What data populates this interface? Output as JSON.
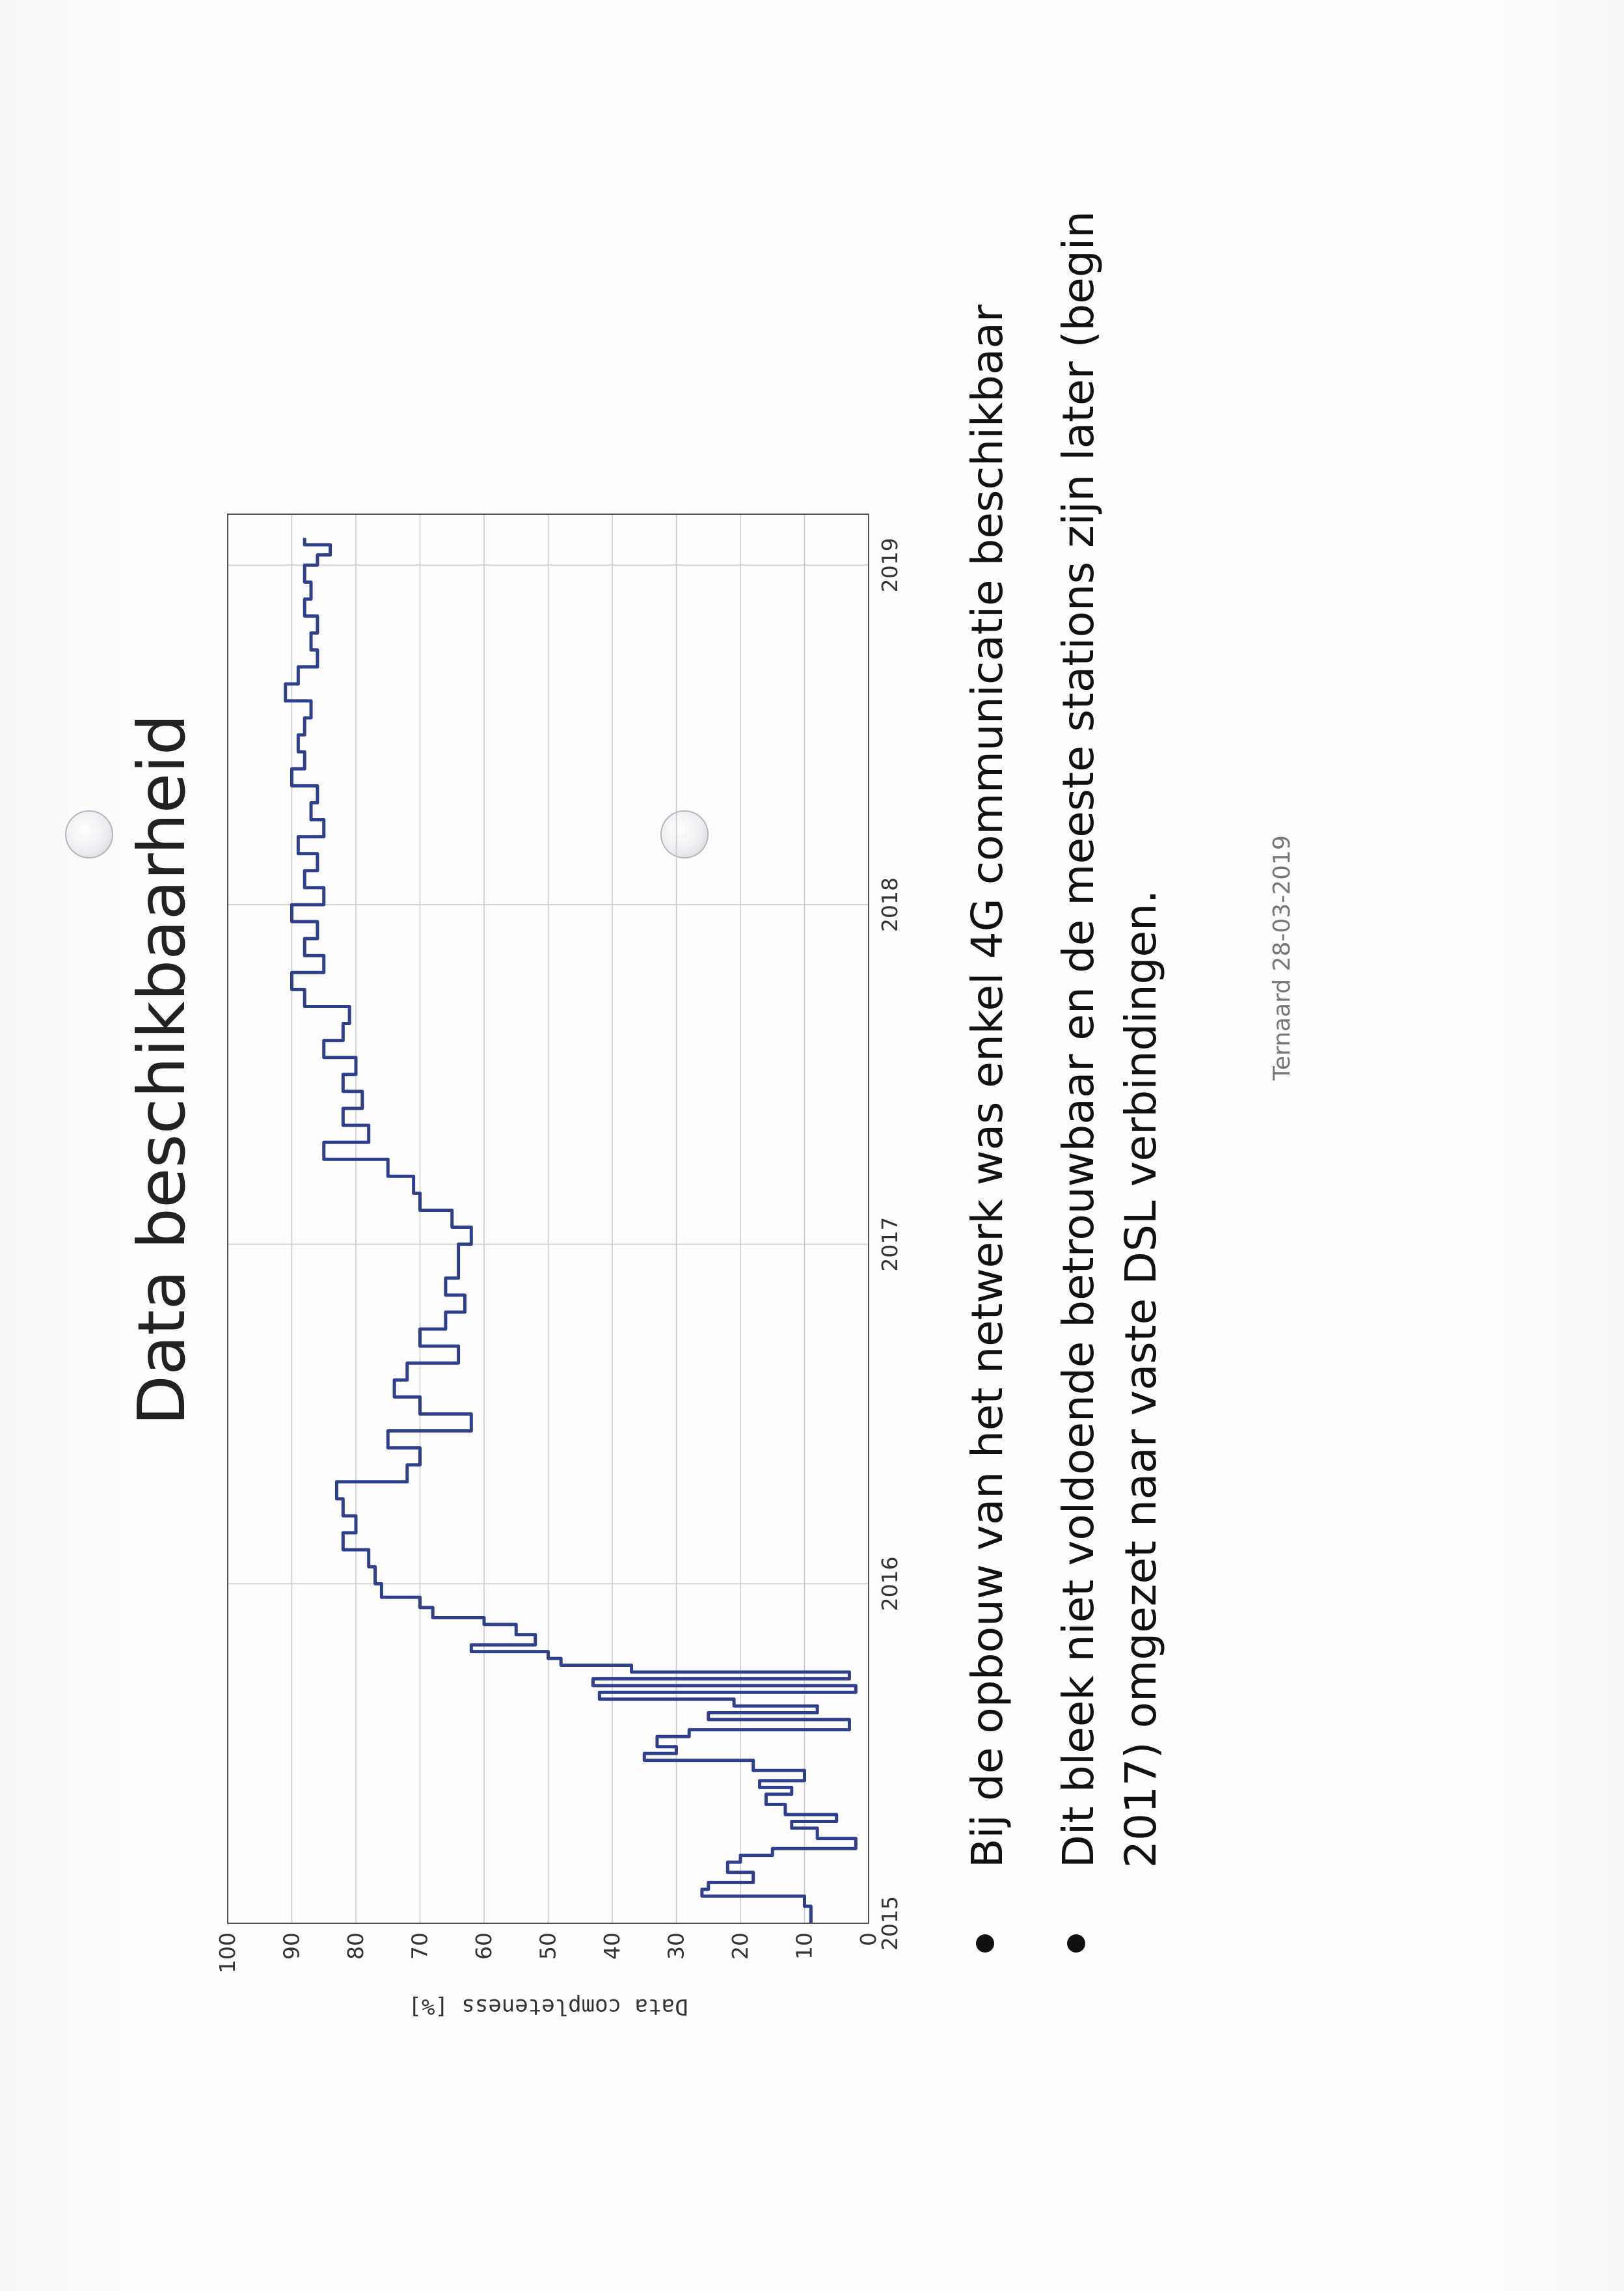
{
  "slide": {
    "title": "Data beschikbaarheid",
    "bullets": [
      "Bij de opbouw van het netwerk was enkel 4G communicatie beschikbaar",
      "Dit bleek niet voldoende betrouwbaar en de meeste stations zijn later (begin 2017) omgezet naar vaste DSL verbindingen."
    ],
    "footer": "Ternaard 28-03-2019"
  },
  "chart_data": {
    "type": "line",
    "title": "",
    "xlabel": "",
    "ylabel": "Data completeness [%]",
    "xlim": [
      2015.0,
      2019.15
    ],
    "ylim": [
      0,
      100
    ],
    "xticks": [
      "2015",
      "2016",
      "2017",
      "2018",
      "2019"
    ],
    "yticks": [
      "0",
      "10",
      "20",
      "30",
      "40",
      "50",
      "60",
      "70",
      "80",
      "90",
      "100"
    ],
    "grid": true,
    "line_color": "#2e3f8c",
    "x": [
      2015.0,
      2015.02,
      2015.05,
      2015.08,
      2015.1,
      2015.12,
      2015.15,
      2015.18,
      2015.2,
      2015.22,
      2015.25,
      2015.28,
      2015.3,
      2015.32,
      2015.35,
      2015.38,
      2015.4,
      2015.42,
      2015.45,
      2015.48,
      2015.5,
      2015.52,
      2015.55,
      2015.57,
      2015.6,
      2015.62,
      2015.64,
      2015.66,
      2015.68,
      2015.7,
      2015.72,
      2015.74,
      2015.76,
      2015.78,
      2015.8,
      2015.82,
      2015.85,
      2015.88,
      2015.9,
      2015.93,
      2015.96,
      2016.0,
      2016.05,
      2016.1,
      2016.15,
      2016.2,
      2016.25,
      2016.3,
      2016.35,
      2016.4,
      2016.45,
      2016.5,
      2016.55,
      2016.6,
      2016.65,
      2016.7,
      2016.75,
      2016.8,
      2016.85,
      2016.9,
      2016.95,
      2017.0,
      2017.05,
      2017.1,
      2017.15,
      2017.2,
      2017.25,
      2017.3,
      2017.35,
      2017.4,
      2017.45,
      2017.5,
      2017.55,
      2017.6,
      2017.65,
      2017.7,
      2017.75,
      2017.8,
      2017.85,
      2017.9,
      2017.95,
      2018.0,
      2018.05,
      2018.1,
      2018.15,
      2018.2,
      2018.25,
      2018.3,
      2018.35,
      2018.4,
      2018.45,
      2018.5,
      2018.55,
      2018.6,
      2018.65,
      2018.7,
      2018.75,
      2018.8,
      2018.85,
      2018.9,
      2018.95,
      2019.0,
      2019.03,
      2019.06
    ],
    "values": [
      9,
      9,
      10,
      26,
      25,
      18,
      22,
      20,
      15,
      2,
      8,
      12,
      5,
      13,
      16,
      12,
      17,
      10,
      18,
      35,
      30,
      33,
      28,
      3,
      25,
      8,
      21,
      42,
      2,
      43,
      3,
      37,
      48,
      50,
      62,
      52,
      55,
      60,
      68,
      70,
      76,
      77,
      78,
      82,
      80,
      82,
      83,
      72,
      70,
      75,
      62,
      70,
      74,
      72,
      64,
      70,
      66,
      63,
      66,
      64,
      64,
      62,
      65,
      70,
      71,
      75,
      85,
      78,
      82,
      79,
      82,
      80,
      85,
      82,
      81,
      88,
      90,
      85,
      88,
      86,
      90,
      85,
      88,
      86,
      89,
      85,
      87,
      86,
      90,
      88,
      89,
      88,
      87,
      91,
      89,
      86,
      87,
      86,
      88,
      87,
      88,
      86,
      84,
      88
    ]
  }
}
